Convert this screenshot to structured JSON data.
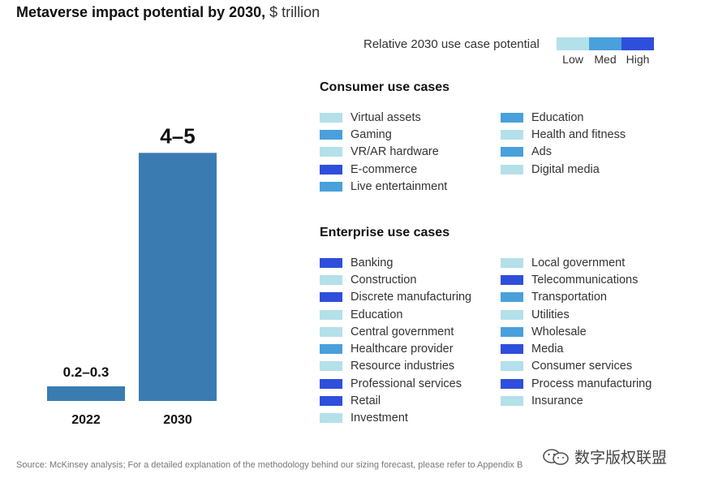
{
  "chart_data": {
    "type": "bar",
    "title": "Metaverse impact potential by 2030,",
    "unit": "$ trillion",
    "categories": [
      "2022",
      "2030"
    ],
    "values": [
      0.25,
      4.5
    ],
    "value_labels": [
      "0.2–0.3",
      "4–5"
    ],
    "ylim": [
      0,
      5.3
    ],
    "bar_color": "#3a7cb2"
  },
  "legend": {
    "label": "Relative 2030 use case potential",
    "levels": [
      {
        "name": "Low",
        "color": "#b4e0ea"
      },
      {
        "name": "Med",
        "color": "#49a0db"
      },
      {
        "name": "High",
        "color": "#2e4fdc"
      }
    ]
  },
  "consumer": {
    "title": "Consumer use cases",
    "col1": [
      {
        "label": "Virtual assets",
        "level": "Low"
      },
      {
        "label": "Gaming",
        "level": "Med"
      },
      {
        "label": "VR/AR hardware",
        "level": "Low"
      },
      {
        "label": "E-commerce",
        "level": "High"
      },
      {
        "label": "Live entertainment",
        "level": "Med"
      }
    ],
    "col2": [
      {
        "label": "Education",
        "level": "Med"
      },
      {
        "label": "Health and fitness",
        "level": "Low"
      },
      {
        "label": "Ads",
        "level": "Med"
      },
      {
        "label": "Digital media",
        "level": "Low"
      }
    ]
  },
  "enterprise": {
    "title": "Enterprise use cases",
    "col1": [
      {
        "label": "Banking",
        "level": "High"
      },
      {
        "label": "Construction",
        "level": "Low"
      },
      {
        "label": "Discrete manufacturing",
        "level": "High"
      },
      {
        "label": "Education",
        "level": "Low"
      },
      {
        "label": "Central government",
        "level": "Low"
      },
      {
        "label": "Healthcare provider",
        "level": "Med"
      },
      {
        "label": "Resource industries",
        "level": "Low"
      },
      {
        "label": "Professional services",
        "level": "High"
      },
      {
        "label": "Retail",
        "level": "High"
      },
      {
        "label": "Investment",
        "level": "Low"
      }
    ],
    "col2": [
      {
        "label": "Local government",
        "level": "Low"
      },
      {
        "label": "Telecommunications",
        "level": "High"
      },
      {
        "label": "Transportation",
        "level": "Med"
      },
      {
        "label": "Utilities",
        "level": "Low"
      },
      {
        "label": "Wholesale",
        "level": "Med"
      },
      {
        "label": "Media",
        "level": "High"
      },
      {
        "label": "Consumer services",
        "level": "Low"
      },
      {
        "label": "Process manufacturing",
        "level": "High"
      },
      {
        "label": "Insurance",
        "level": "Low"
      }
    ]
  },
  "source": "Source: McKinsey analysis; For a detailed explanation of the methodology behind our sizing forecast, please refer to Appendix B",
  "watermark": {
    "text": "数字版权联盟",
    "icon": "wechat-icon"
  }
}
